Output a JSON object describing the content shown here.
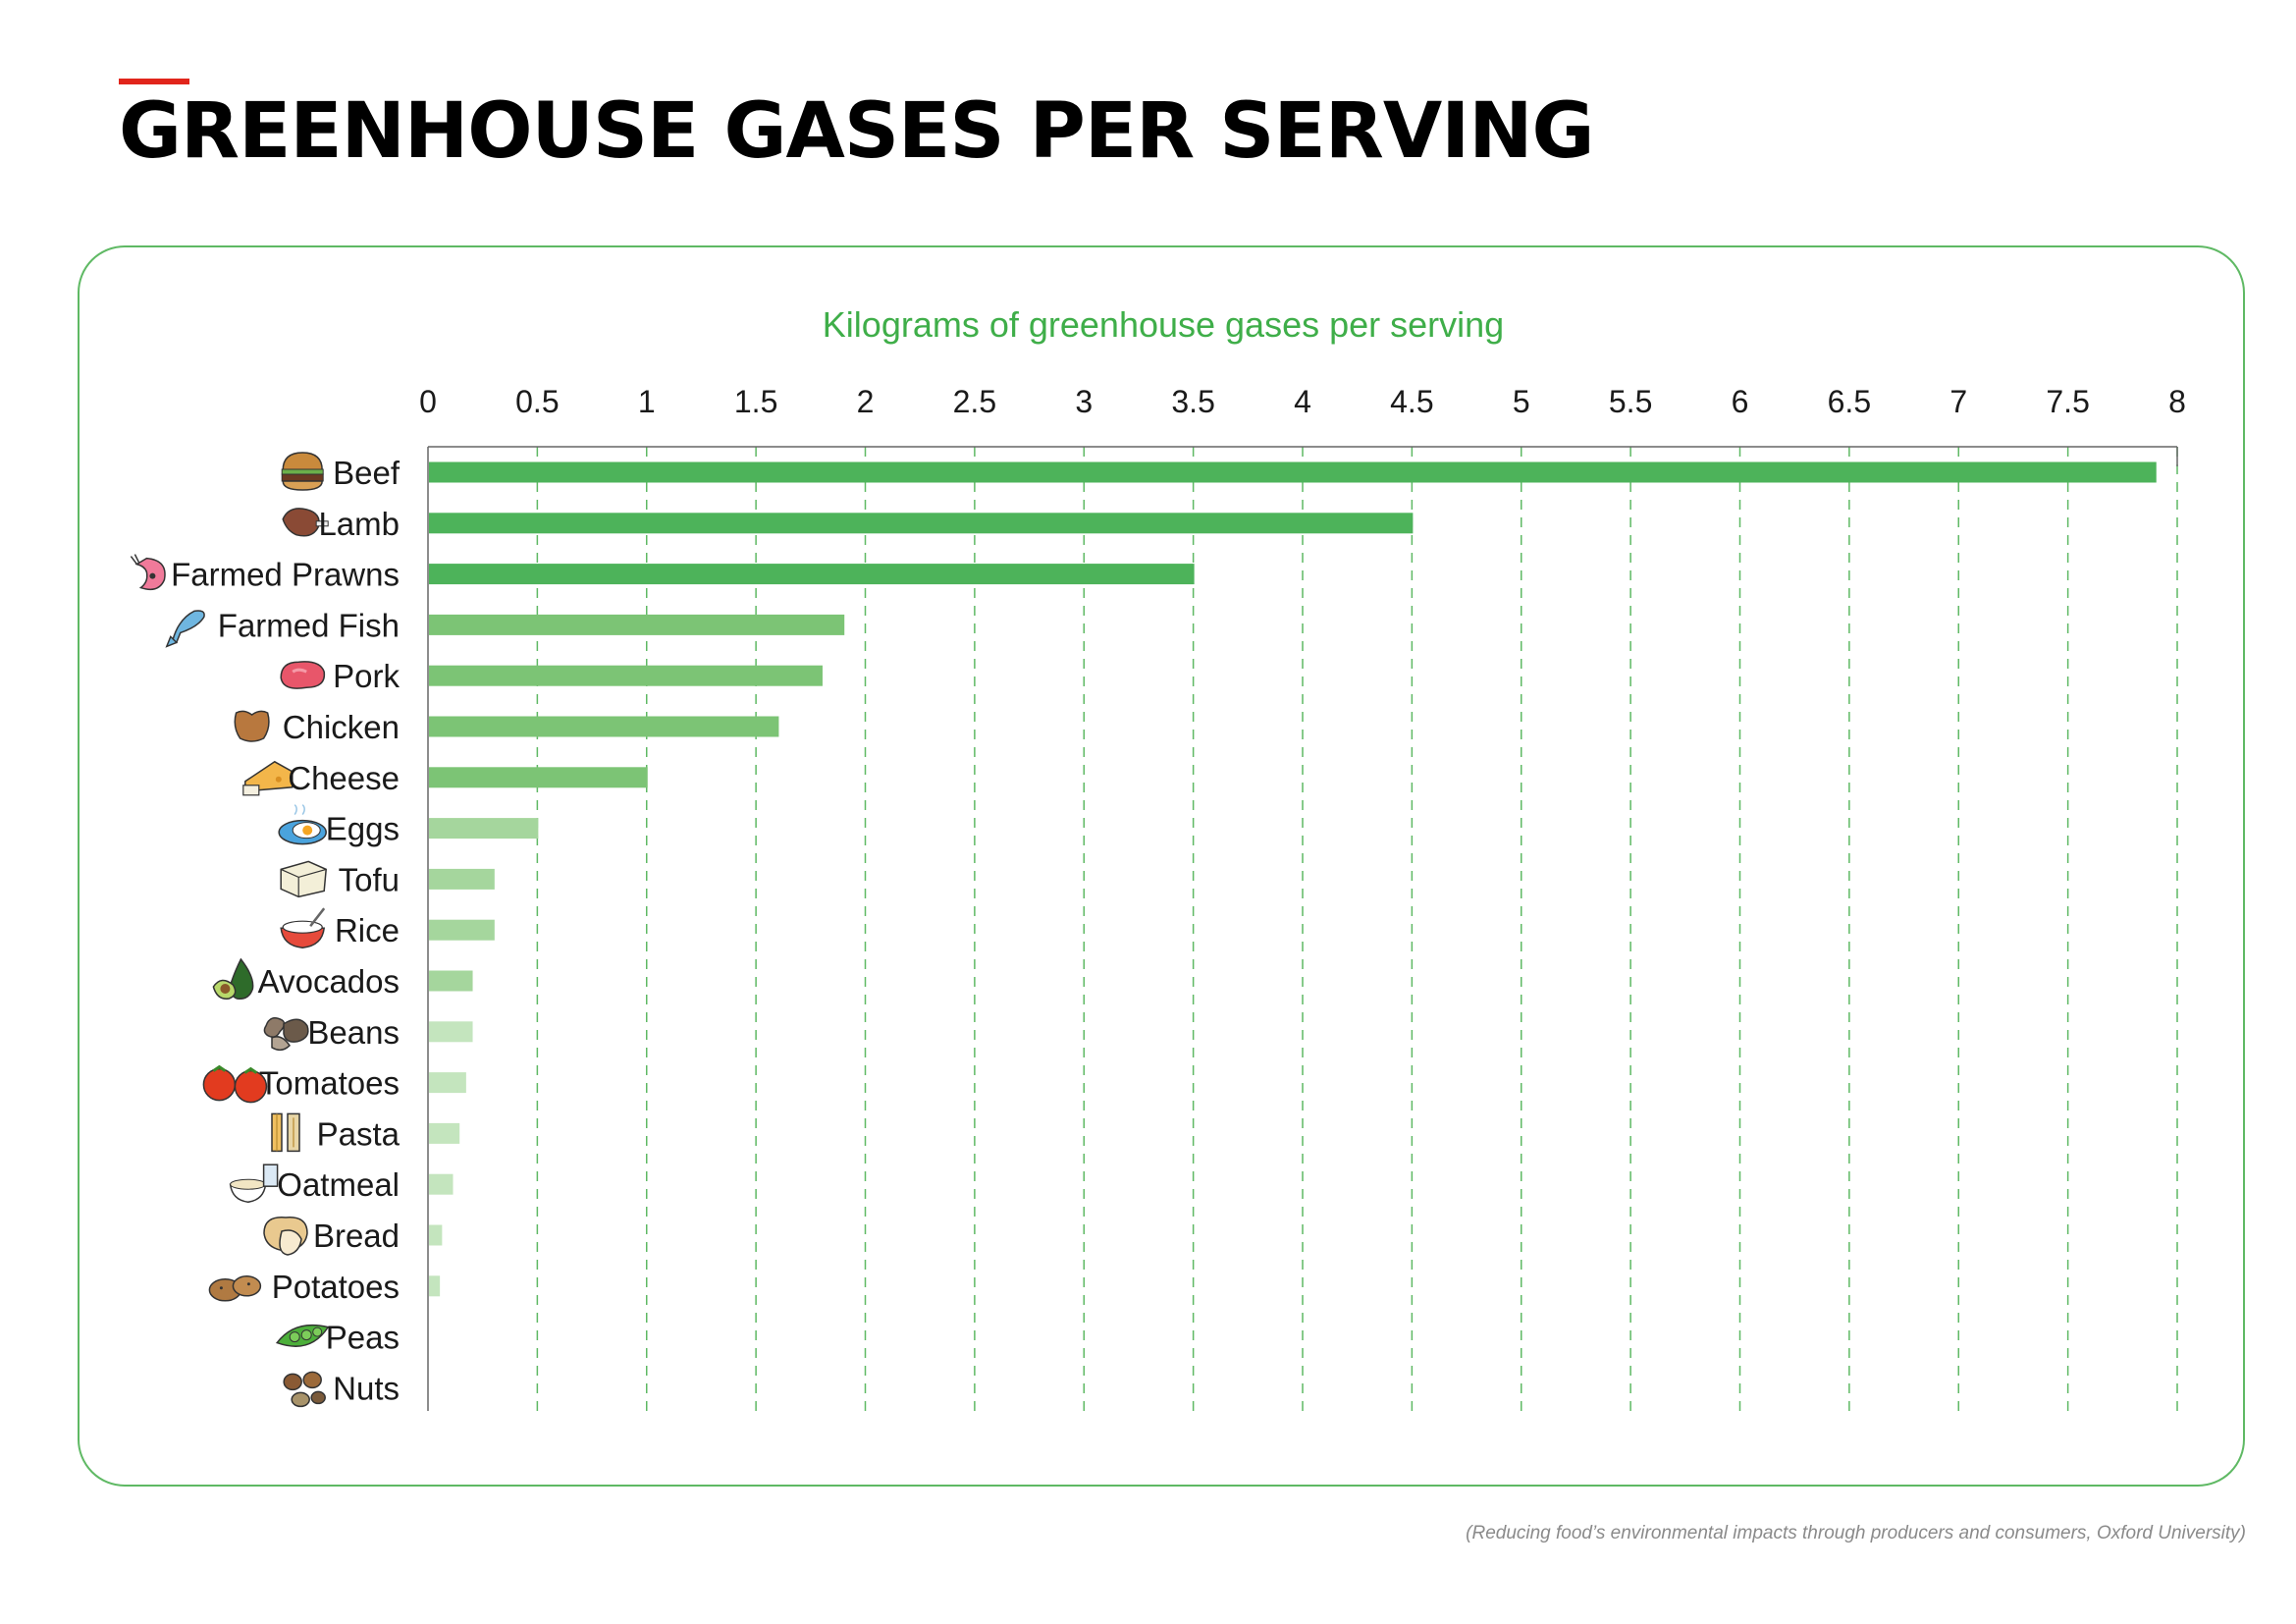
{
  "page": {
    "title": "GREENHOUSE GASES PER SERVING",
    "source": "(Reducing food’s environmental impacts through producers and consumers, Oxford University)"
  },
  "colors": {
    "accent_rule": "#e1251b",
    "frame": "#5fb964",
    "chart_title": "#3fae49",
    "gridline": "#5fb964",
    "bar_shades": [
      "#4db35a",
      "#7cc475",
      "#a5d69d",
      "#c4e5be"
    ]
  },
  "chart_data": {
    "type": "bar",
    "orientation": "horizontal",
    "title": "Kilograms of greenhouse gases per serving",
    "xlabel": "",
    "ylabel": "",
    "xlim": [
      0,
      8
    ],
    "x_ticks": [
      "0",
      "0.5",
      "1",
      "1.5",
      "2",
      "2.5",
      "3",
      "3.5",
      "4",
      "4.5",
      "5",
      "5.5",
      "6",
      "6.5",
      "7",
      "7.5",
      "8"
    ],
    "x_axis_position": "top",
    "grid": "vertical dashed",
    "legend": "none",
    "categories": [
      "Beef",
      "Lamb",
      "Farmed Prawns",
      "Farmed Fish",
      "Pork",
      "Chicken",
      "Cheese",
      "Eggs",
      "Tofu",
      "Rice",
      "Avocados",
      "Beans",
      "Tomatoes",
      "Pasta",
      "Oatmeal",
      "Bread",
      "Potatoes",
      "Peas",
      "Nuts"
    ],
    "values": [
      7.9,
      4.5,
      3.5,
      1.9,
      1.8,
      1.6,
      1.0,
      0.5,
      0.3,
      0.3,
      0.2,
      0.2,
      0.17,
      0.14,
      0.11,
      0.06,
      0.05,
      0.0,
      0.0
    ],
    "bar_shade_index": [
      0,
      0,
      0,
      1,
      1,
      1,
      1,
      2,
      2,
      2,
      2,
      3,
      3,
      3,
      3,
      3,
      3,
      3,
      3
    ],
    "icons": [
      "burger-icon",
      "lamb-icon",
      "prawn-icon",
      "fish-icon",
      "pork-icon",
      "chicken-icon",
      "cheese-icon",
      "eggs-icon",
      "tofu-icon",
      "rice-icon",
      "avocado-icon",
      "beans-icon",
      "tomatoes-icon",
      "pasta-icon",
      "oatmeal-icon",
      "bread-icon",
      "potatoes-icon",
      "peas-icon",
      "nuts-icon"
    ]
  }
}
